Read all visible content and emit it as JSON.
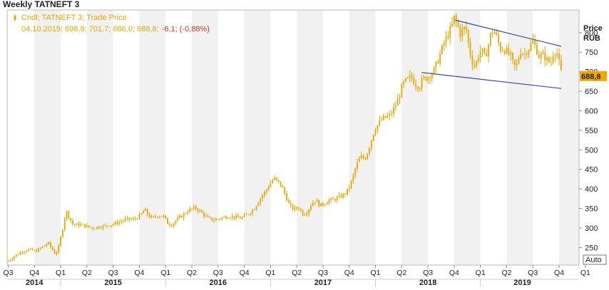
{
  "chart_data": {
    "type": "candlestick",
    "title": "Weekly TATNEFT 3",
    "legend": {
      "series_label": "Cndl; TATNEFT 3; Trade Price",
      "ohlc_text": "04.10.2019; 698,8; 701,7; 686,0; 688,8;",
      "change_text": "-6,1; (-0,88%)"
    },
    "y_axis": {
      "title_line1": "Price",
      "title_line2": "RUB",
      "ticks": [
        250,
        300,
        350,
        400,
        450,
        500,
        550,
        600,
        650,
        700,
        750,
        800
      ],
      "tick_labels": [
        "250",
        "300",
        "350",
        "400",
        "450",
        "500",
        "550",
        "600",
        "650",
        "700",
        "750",
        "800"
      ],
      "range": [
        205,
        858
      ],
      "position": "right"
    },
    "last_price_label": "688,8",
    "auto_label": "Auto",
    "x_axis": {
      "range": [
        2014.49,
        2019.94
      ],
      "quarter_ticks": [
        {
          "label": "Q3",
          "x": 2014.5
        },
        {
          "label": "Q4",
          "x": 2014.75
        },
        {
          "label": "Q1",
          "x": 2015.0
        },
        {
          "label": "Q2",
          "x": 2015.25
        },
        {
          "label": "Q3",
          "x": 2015.5
        },
        {
          "label": "Q4",
          "x": 2015.75
        },
        {
          "label": "Q1",
          "x": 2016.0
        },
        {
          "label": "Q2",
          "x": 2016.25
        },
        {
          "label": "Q3",
          "x": 2016.5
        },
        {
          "label": "Q4",
          "x": 2016.75
        },
        {
          "label": "Q1",
          "x": 2017.0
        },
        {
          "label": "Q2",
          "x": 2017.25
        },
        {
          "label": "Q3",
          "x": 2017.5
        },
        {
          "label": "Q4",
          "x": 2017.75
        },
        {
          "label": "Q1",
          "x": 2018.0
        },
        {
          "label": "Q2",
          "x": 2018.25
        },
        {
          "label": "Q3",
          "x": 2018.5
        },
        {
          "label": "Q4",
          "x": 2018.75
        },
        {
          "label": "Q1",
          "x": 2019.0
        },
        {
          "label": "Q2",
          "x": 2019.25
        },
        {
          "label": "Q3",
          "x": 2019.5
        },
        {
          "label": "Q4",
          "x": 2019.75
        },
        {
          "label": "Q1",
          "x": 2020.0
        }
      ],
      "years": [
        {
          "label": "2014",
          "x": 2014.75
        },
        {
          "label": "2015",
          "x": 2015.5
        },
        {
          "label": "2016",
          "x": 2016.5
        },
        {
          "label": "2017",
          "x": 2017.5
        },
        {
          "label": "2018",
          "x": 2018.5
        },
        {
          "label": "2019",
          "x": 2019.4
        }
      ]
    },
    "price_path": [
      [
        2014.5,
        215
      ],
      [
        2014.56,
        228
      ],
      [
        2014.62,
        238
      ],
      [
        2014.7,
        245
      ],
      [
        2014.76,
        240
      ],
      [
        2014.82,
        250
      ],
      [
        2014.88,
        262
      ],
      [
        2014.92,
        245
      ],
      [
        2014.95,
        232
      ],
      [
        2014.98,
        250
      ],
      [
        2015.02,
        300
      ],
      [
        2015.05,
        345
      ],
      [
        2015.08,
        328
      ],
      [
        2015.12,
        308
      ],
      [
        2015.2,
        308
      ],
      [
        2015.3,
        300
      ],
      [
        2015.4,
        304
      ],
      [
        2015.5,
        310
      ],
      [
        2015.56,
        315
      ],
      [
        2015.62,
        322
      ],
      [
        2015.7,
        322
      ],
      [
        2015.76,
        332
      ],
      [
        2015.8,
        348
      ],
      [
        2015.84,
        330
      ],
      [
        2015.88,
        325
      ],
      [
        2015.92,
        332
      ],
      [
        2015.98,
        330
      ],
      [
        2016.02,
        312
      ],
      [
        2016.06,
        308
      ],
      [
        2016.1,
        320
      ],
      [
        2016.15,
        330
      ],
      [
        2016.22,
        345
      ],
      [
        2016.28,
        352
      ],
      [
        2016.34,
        340
      ],
      [
        2016.4,
        325
      ],
      [
        2016.46,
        320
      ],
      [
        2016.52,
        325
      ],
      [
        2016.6,
        330
      ],
      [
        2016.66,
        328
      ],
      [
        2016.72,
        325
      ],
      [
        2016.78,
        335
      ],
      [
        2016.84,
        348
      ],
      [
        2016.9,
        375
      ],
      [
        2016.96,
        398
      ],
      [
        2017.0,
        415
      ],
      [
        2017.03,
        428
      ],
      [
        2017.06,
        420
      ],
      [
        2017.1,
        410
      ],
      [
        2017.14,
        385
      ],
      [
        2017.18,
        358
      ],
      [
        2017.22,
        348
      ],
      [
        2017.27,
        352
      ],
      [
        2017.31,
        335
      ],
      [
        2017.35,
        342
      ],
      [
        2017.39,
        362
      ],
      [
        2017.43,
        372
      ],
      [
        2017.47,
        357
      ],
      [
        2017.51,
        362
      ],
      [
        2017.55,
        370
      ],
      [
        2017.6,
        372
      ],
      [
        2017.65,
        378
      ],
      [
        2017.7,
        385
      ],
      [
        2017.74,
        398
      ],
      [
        2017.78,
        425
      ],
      [
        2017.82,
        462
      ],
      [
        2017.86,
        482
      ],
      [
        2017.9,
        478
      ],
      [
        2017.93,
        498
      ],
      [
        2017.96,
        525
      ],
      [
        2017.99,
        552
      ],
      [
        2018.02,
        563
      ],
      [
        2018.06,
        578
      ],
      [
        2018.1,
        583
      ],
      [
        2018.14,
        588
      ],
      [
        2018.18,
        608
      ],
      [
        2018.22,
        632
      ],
      [
        2018.26,
        668
      ],
      [
        2018.3,
        678
      ],
      [
        2018.34,
        688
      ],
      [
        2018.38,
        668
      ],
      [
        2018.42,
        662
      ],
      [
        2018.45,
        680
      ],
      [
        2018.5,
        688
      ],
      [
        2018.55,
        698
      ],
      [
        2018.58,
        718
      ],
      [
        2018.62,
        748
      ],
      [
        2018.66,
        778
      ],
      [
        2018.7,
        800
      ],
      [
        2018.73,
        818
      ],
      [
        2018.75,
        838
      ],
      [
        2018.78,
        822
      ],
      [
        2018.81,
        795
      ],
      [
        2018.84,
        812
      ],
      [
        2018.87,
        805
      ],
      [
        2018.89,
        762
      ],
      [
        2018.92,
        728
      ],
      [
        2018.95,
        712
      ],
      [
        2018.98,
        742
      ],
      [
        2019.01,
        758
      ],
      [
        2019.04,
        735
      ],
      [
        2019.07,
        760
      ],
      [
        2019.1,
        798
      ],
      [
        2019.13,
        805
      ],
      [
        2019.16,
        785
      ],
      [
        2019.19,
        758
      ],
      [
        2019.22,
        760
      ],
      [
        2019.26,
        748
      ],
      [
        2019.29,
        738
      ],
      [
        2019.32,
        712
      ],
      [
        2019.35,
        718
      ],
      [
        2019.38,
        755
      ],
      [
        2019.42,
        745
      ],
      [
        2019.46,
        760
      ],
      [
        2019.5,
        778
      ],
      [
        2019.53,
        760
      ],
      [
        2019.56,
        738
      ],
      [
        2019.6,
        742
      ],
      [
        2019.64,
        728
      ],
      [
        2019.67,
        722
      ],
      [
        2019.7,
        755
      ],
      [
        2019.73,
        748
      ],
      [
        2019.75,
        722
      ],
      [
        2019.77,
        698
      ],
      [
        2019.78,
        688.8
      ]
    ],
    "trendlines": [
      {
        "from": [
          2018.76,
          832
        ],
        "to": [
          2019.77,
          765
        ]
      },
      {
        "from": [
          2018.44,
          698
        ],
        "to": [
          2019.77,
          657
        ]
      }
    ],
    "candle_color": "#e6a700",
    "trendline_color": "#3a4aa8",
    "band_color": "#f1f1f1",
    "label_bg_color": "#f0a800"
  }
}
